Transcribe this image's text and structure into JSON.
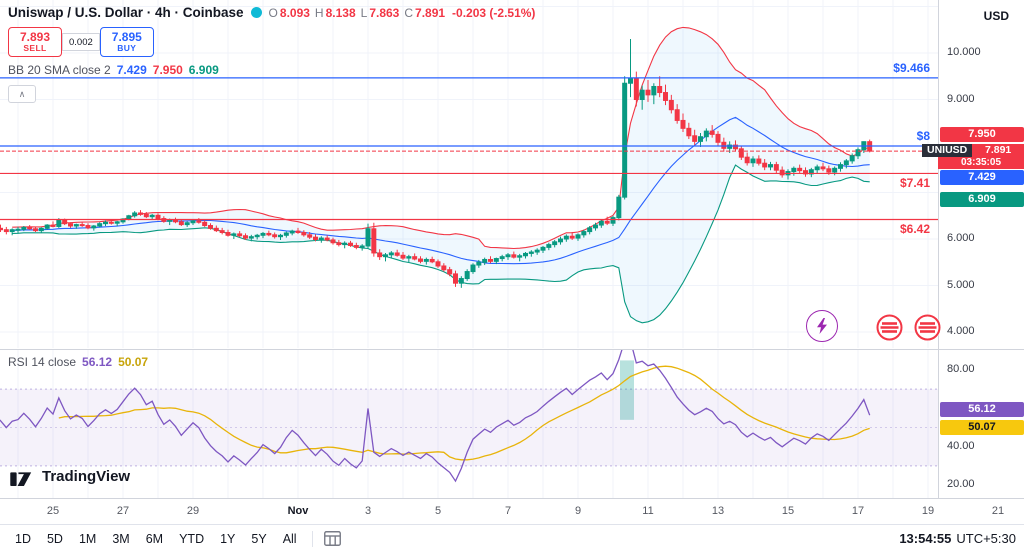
{
  "header": {
    "symbol_title": "Uniswap / U.S. Dollar · 4h · Coinbase",
    "ohlc": {
      "o_label": "O",
      "o": "8.093",
      "h_label": "H",
      "h": "8.138",
      "l_label": "L",
      "l": "7.863",
      "c_label": "C",
      "c": "7.891",
      "change": "-0.203 (-2.51%)"
    },
    "currency_button": "USD"
  },
  "order_panel": {
    "sell_price": "7.893",
    "sell_label": "SELL",
    "spread": "0.002",
    "buy_price": "7.895",
    "buy_label": "BUY"
  },
  "indicators": {
    "bb": {
      "label": "BB 20 SMA close 2",
      "basis": "7.429",
      "upper": "7.950",
      "lower": "6.909"
    },
    "rsi": {
      "label": "RSI 14 close",
      "value": "56.12",
      "ma": "50.07"
    },
    "collapse_glyph": "∧"
  },
  "price_axis": {
    "ticks": [
      {
        "price": 10,
        "label": "10.000"
      },
      {
        "price": 9,
        "label": "9.000"
      },
      {
        "price": 6,
        "label": "6.000"
      },
      {
        "price": 5,
        "label": "5.000"
      },
      {
        "price": 4,
        "label": "4.000"
      }
    ],
    "badges": [
      {
        "text": "7.950",
        "price": 7.95,
        "bg": "#f23645",
        "color": "#ffffff"
      },
      {
        "text": "7.429",
        "price": 7.429,
        "bg": "#2962ff",
        "color": "#ffffff"
      },
      {
        "text": "6.909",
        "price": 6.909,
        "bg": "#089981",
        "color": "#ffffff"
      }
    ],
    "symbol_badge": {
      "symbol": "UNIUSD",
      "price": "7.891",
      "price_value": 7.891,
      "countdown": "03:35:05"
    }
  },
  "rsi_axis": {
    "ticks": [
      {
        "value": 80,
        "label": "80.00"
      },
      {
        "value": 60,
        "label": "60.00"
      },
      {
        "value": 40,
        "label": "40.00"
      },
      {
        "value": 20,
        "label": "20.00"
      }
    ],
    "badges": [
      {
        "text": "56.12",
        "value": 56.12,
        "bg": "#7e57c2",
        "color": "#ffffff",
        "nudge": -7
      },
      {
        "text": "50.07",
        "value": 50.07,
        "bg": "#f7c80e",
        "color": "#131722",
        "nudge": 0
      }
    ]
  },
  "time_axis": {
    "labels": [
      {
        "text": "25",
        "day": 1
      },
      {
        "text": "27",
        "day": 3
      },
      {
        "text": "29",
        "day": 5
      },
      {
        "text": "Nov",
        "day": 8,
        "month": true
      },
      {
        "text": "3",
        "day": 10
      },
      {
        "text": "5",
        "day": 12
      },
      {
        "text": "7",
        "day": 14
      },
      {
        "text": "9",
        "day": 16
      },
      {
        "text": "11",
        "day": 18
      },
      {
        "text": "13",
        "day": 20
      },
      {
        "text": "15",
        "day": 22
      },
      {
        "text": "17",
        "day": 24
      },
      {
        "text": "19",
        "day": 26
      },
      {
        "text": "21",
        "day": 28
      }
    ]
  },
  "toolbar": {
    "ranges": [
      "1D",
      "5D",
      "1M",
      "3M",
      "6M",
      "YTD",
      "1Y",
      "5Y",
      "All"
    ],
    "clock": "13:54:55",
    "timezone": "UTC+5:30"
  },
  "logo": {
    "text": "TradingView"
  },
  "chart_data": {
    "type": "candlestick",
    "symbol": "UNIUSD",
    "title": "Uniswap / U.S. Dollar",
    "interval": "4h",
    "exchange": "Coinbase",
    "last_ohlc": {
      "open": 8.093,
      "high": 8.138,
      "low": 7.863,
      "close": 7.891,
      "change": -0.203,
      "change_pct": -2.51
    },
    "visible_from": 20,
    "candles": [
      [
        6.1,
        6.18,
        6.02,
        6.15
      ],
      [
        6.15,
        6.22,
        6.08,
        6.12
      ],
      [
        6.12,
        6.2,
        6.05,
        6.18
      ],
      [
        6.18,
        6.26,
        6.12,
        6.22
      ],
      [
        6.22,
        6.3,
        6.15,
        6.19
      ],
      [
        6.19,
        6.25,
        6.1,
        6.14
      ],
      [
        6.14,
        6.22,
        6.06,
        6.2
      ],
      [
        6.2,
        6.28,
        6.12,
        6.16
      ],
      [
        6.16,
        6.24,
        6.08,
        6.21
      ],
      [
        6.21,
        6.3,
        6.14,
        6.26
      ],
      [
        6.26,
        6.34,
        6.18,
        6.22
      ],
      [
        6.22,
        6.28,
        6.12,
        6.17
      ],
      [
        6.17,
        6.25,
        6.1,
        6.21
      ],
      [
        6.21,
        6.29,
        6.13,
        6.18
      ],
      [
        6.18,
        6.24,
        6.08,
        6.14
      ],
      [
        6.14,
        6.21,
        6.05,
        6.19
      ],
      [
        6.19,
        6.27,
        6.11,
        6.23
      ],
      [
        6.23,
        6.31,
        6.15,
        6.2
      ],
      [
        6.2,
        6.26,
        6.1,
        6.16
      ],
      [
        6.16,
        6.23,
        6.08,
        6.2
      ],
      [
        6.2,
        6.26,
        6.12,
        6.21
      ],
      [
        6.21,
        6.28,
        6.17,
        6.25
      ],
      [
        6.25,
        6.3,
        6.2,
        6.22
      ],
      [
        6.22,
        6.26,
        6.15,
        6.18
      ],
      [
        6.18,
        6.25,
        6.14,
        6.23
      ],
      [
        6.23,
        6.32,
        6.2,
        6.3
      ],
      [
        6.3,
        6.38,
        6.25,
        6.27
      ],
      [
        6.27,
        6.45,
        6.24,
        6.4
      ],
      [
        6.4,
        6.44,
        6.3,
        6.33
      ],
      [
        6.33,
        6.36,
        6.24,
        6.28
      ],
      [
        6.28,
        6.33,
        6.22,
        6.31
      ],
      [
        6.31,
        6.36,
        6.26,
        6.29
      ],
      [
        6.29,
        6.34,
        6.21,
        6.24
      ],
      [
        6.24,
        6.3,
        6.18,
        6.28
      ],
      [
        6.28,
        6.36,
        6.25,
        6.33
      ],
      [
        6.33,
        6.4,
        6.28,
        6.36
      ],
      [
        6.36,
        6.42,
        6.31,
        6.34
      ],
      [
        6.34,
        6.39,
        6.28,
        6.37
      ],
      [
        6.37,
        6.45,
        6.33,
        6.43
      ],
      [
        6.43,
        6.52,
        6.4,
        6.5
      ],
      [
        6.5,
        6.6,
        6.46,
        6.56
      ],
      [
        6.56,
        6.62,
        6.5,
        6.53
      ],
      [
        6.53,
        6.58,
        6.45,
        6.48
      ],
      [
        6.48,
        6.54,
        6.42,
        6.51
      ],
      [
        6.51,
        6.55,
        6.4,
        6.44
      ],
      [
        6.44,
        6.49,
        6.35,
        6.38
      ],
      [
        6.38,
        6.44,
        6.3,
        6.41
      ],
      [
        6.41,
        6.46,
        6.34,
        6.37
      ],
      [
        6.37,
        6.42,
        6.28,
        6.31
      ],
      [
        6.31,
        6.38,
        6.26,
        6.35
      ],
      [
        6.35,
        6.42,
        6.3,
        6.39
      ],
      [
        6.39,
        6.45,
        6.33,
        6.36
      ],
      [
        6.36,
        6.4,
        6.26,
        6.29
      ],
      [
        6.29,
        6.34,
        6.2,
        6.23
      ],
      [
        6.23,
        6.29,
        6.15,
        6.18
      ],
      [
        6.18,
        6.24,
        6.1,
        6.14
      ],
      [
        6.14,
        6.2,
        6.05,
        6.08
      ],
      [
        6.08,
        6.14,
        6.0,
        6.11
      ],
      [
        6.11,
        6.17,
        6.04,
        6.07
      ],
      [
        6.07,
        6.12,
        5.98,
        6.02
      ],
      [
        6.02,
        6.09,
        5.95,
        6.05
      ],
      [
        6.05,
        6.11,
        5.99,
        6.08
      ],
      [
        6.08,
        6.15,
        6.02,
        6.12
      ],
      [
        6.12,
        6.18,
        6.06,
        6.09
      ],
      [
        6.09,
        6.14,
        6.01,
        6.05
      ],
      [
        6.05,
        6.11,
        5.98,
        6.08
      ],
      [
        6.08,
        6.16,
        6.03,
        6.13
      ],
      [
        6.13,
        6.2,
        6.08,
        6.17
      ],
      [
        6.17,
        6.24,
        6.11,
        6.14
      ],
      [
        6.14,
        6.19,
        6.05,
        6.09
      ],
      [
        6.09,
        6.15,
        6.0,
        6.04
      ],
      [
        6.04,
        6.1,
        5.95,
        5.99
      ],
      [
        5.99,
        6.06,
        5.92,
        6.02
      ],
      [
        6.02,
        6.08,
        5.95,
        5.98
      ],
      [
        5.98,
        6.03,
        5.88,
        5.92
      ],
      [
        5.92,
        5.98,
        5.84,
        5.88
      ],
      [
        5.88,
        5.95,
        5.8,
        5.91
      ],
      [
        5.91,
        5.96,
        5.83,
        5.86
      ],
      [
        5.86,
        5.92,
        5.78,
        5.82
      ],
      [
        5.82,
        5.89,
        5.75,
        5.85
      ],
      [
        5.85,
        6.33,
        5.8,
        6.22
      ],
      [
        6.22,
        6.35,
        5.62,
        5.7
      ],
      [
        5.7,
        5.78,
        5.55,
        5.62
      ],
      [
        5.62,
        5.7,
        5.52,
        5.66
      ],
      [
        5.66,
        5.74,
        5.58,
        5.7
      ],
      [
        5.7,
        5.77,
        5.62,
        5.65
      ],
      [
        5.65,
        5.72,
        5.55,
        5.59
      ],
      [
        5.59,
        5.66,
        5.5,
        5.62
      ],
      [
        5.62,
        5.69,
        5.54,
        5.57
      ],
      [
        5.57,
        5.63,
        5.48,
        5.52
      ],
      [
        5.52,
        5.6,
        5.45,
        5.56
      ],
      [
        5.56,
        5.62,
        5.48,
        5.51
      ],
      [
        5.51,
        5.56,
        5.38,
        5.42
      ],
      [
        5.42,
        5.48,
        5.3,
        5.34
      ],
      [
        5.34,
        5.4,
        5.2,
        5.25
      ],
      [
        5.25,
        5.32,
        4.97,
        5.05
      ],
      [
        5.05,
        5.2,
        4.95,
        5.15
      ],
      [
        5.15,
        5.35,
        5.1,
        5.3
      ],
      [
        5.3,
        5.48,
        5.25,
        5.44
      ],
      [
        5.44,
        5.55,
        5.38,
        5.5
      ],
      [
        5.5,
        5.6,
        5.44,
        5.56
      ],
      [
        5.56,
        5.63,
        5.48,
        5.52
      ],
      [
        5.52,
        5.6,
        5.46,
        5.58
      ],
      [
        5.58,
        5.66,
        5.52,
        5.62
      ],
      [
        5.62,
        5.7,
        5.55,
        5.66
      ],
      [
        5.66,
        5.73,
        5.58,
        5.61
      ],
      [
        5.61,
        5.68,
        5.52,
        5.64
      ],
      [
        5.64,
        5.72,
        5.58,
        5.69
      ],
      [
        5.69,
        5.76,
        5.62,
        5.72
      ],
      [
        5.72,
        5.8,
        5.66,
        5.76
      ],
      [
        5.76,
        5.85,
        5.7,
        5.82
      ],
      [
        5.82,
        5.92,
        5.76,
        5.88
      ],
      [
        5.88,
        5.98,
        5.82,
        5.94
      ],
      [
        5.94,
        6.05,
        5.88,
        6.0
      ],
      [
        6.0,
        6.1,
        5.94,
        6.06
      ],
      [
        6.06,
        6.15,
        5.98,
        6.02
      ],
      [
        6.02,
        6.12,
        5.96,
        6.09
      ],
      [
        6.09,
        6.2,
        6.03,
        6.16
      ],
      [
        6.16,
        6.28,
        6.1,
        6.24
      ],
      [
        6.24,
        6.35,
        6.18,
        6.3
      ],
      [
        6.3,
        6.42,
        6.24,
        6.38
      ],
      [
        6.38,
        6.48,
        6.3,
        6.34
      ],
      [
        6.34,
        6.5,
        6.28,
        6.46
      ],
      [
        6.46,
        6.95,
        6.4,
        6.9
      ],
      [
        6.9,
        9.5,
        6.85,
        9.35
      ],
      [
        9.35,
        10.3,
        9.05,
        9.45
      ],
      [
        9.45,
        9.6,
        8.85,
        9.0
      ],
      [
        9.0,
        9.3,
        8.78,
        9.2
      ],
      [
        9.2,
        9.42,
        8.95,
        9.1
      ],
      [
        9.1,
        9.35,
        8.9,
        9.28
      ],
      [
        9.28,
        9.5,
        9.05,
        9.15
      ],
      [
        9.15,
        9.32,
        8.88,
        8.98
      ],
      [
        8.98,
        9.1,
        8.7,
        8.78
      ],
      [
        8.78,
        8.9,
        8.48,
        8.55
      ],
      [
        8.55,
        8.7,
        8.3,
        8.38
      ],
      [
        8.38,
        8.5,
        8.15,
        8.22
      ],
      [
        8.22,
        8.35,
        8.02,
        8.1
      ],
      [
        8.1,
        8.28,
        7.98,
        8.2
      ],
      [
        8.2,
        8.38,
        8.1,
        8.32
      ],
      [
        8.32,
        8.45,
        8.18,
        8.25
      ],
      [
        8.25,
        8.32,
        8.0,
        8.08
      ],
      [
        8.08,
        8.18,
        7.88,
        7.95
      ],
      [
        7.95,
        8.1,
        7.85,
        8.02
      ],
      [
        8.02,
        8.12,
        7.88,
        7.94
      ],
      [
        7.94,
        8.0,
        7.7,
        7.76
      ],
      [
        7.76,
        7.86,
        7.58,
        7.64
      ],
      [
        7.64,
        7.78,
        7.55,
        7.72
      ],
      [
        7.72,
        7.8,
        7.58,
        7.63
      ],
      [
        7.63,
        7.72,
        7.48,
        7.55
      ],
      [
        7.55,
        7.66,
        7.48,
        7.6
      ],
      [
        7.6,
        7.66,
        7.42,
        7.48
      ],
      [
        7.48,
        7.56,
        7.32,
        7.38
      ],
      [
        7.38,
        7.5,
        7.28,
        7.45
      ],
      [
        7.45,
        7.56,
        7.36,
        7.52
      ],
      [
        7.52,
        7.6,
        7.42,
        7.47
      ],
      [
        7.47,
        7.54,
        7.34,
        7.4
      ],
      [
        7.4,
        7.53,
        7.33,
        7.49
      ],
      [
        7.49,
        7.6,
        7.42,
        7.55
      ],
      [
        7.55,
        7.64,
        7.46,
        7.51
      ],
      [
        7.51,
        7.58,
        7.38,
        7.44
      ],
      [
        7.44,
        7.56,
        7.37,
        7.52
      ],
      [
        7.52,
        7.65,
        7.45,
        7.6
      ],
      [
        7.6,
        7.72,
        7.52,
        7.68
      ],
      [
        7.68,
        7.84,
        7.62,
        7.79
      ],
      [
        7.79,
        7.97,
        7.72,
        7.92
      ],
      [
        7.92,
        8.1,
        7.85,
        8.093
      ],
      [
        8.093,
        8.138,
        7.863,
        7.891
      ]
    ],
    "horizontal_lines": [
      {
        "price": 9.466,
        "label": "$9.466",
        "color": "#2962ff",
        "label_above": true
      },
      {
        "price": 8.0,
        "label": "$8",
        "color": "#2962ff",
        "label_above": true
      },
      {
        "price": 7.41,
        "label": "$7.41",
        "color": "#f23645",
        "label_above": false
      },
      {
        "price": 6.42,
        "label": "$6.42",
        "color": "#f23645",
        "label_above": false
      }
    ],
    "last_price_line": {
      "price": 7.891,
      "color": "#f23645"
    },
    "bollinger": {
      "period": 20,
      "stdev": 2,
      "source": "close",
      "last_basis": 7.429,
      "last_upper": 7.95,
      "last_lower": 6.909,
      "basis_color": "#2962ff",
      "upper_color": "#f23645",
      "lower_color": "#089981",
      "fill": "rgba(33,150,243,0.07)"
    },
    "rsi": {
      "period": 14,
      "source": "close",
      "last_value": 56.12,
      "ma_last": 50.07,
      "color": "#7e57c2",
      "ma_color": "#e8b40a",
      "band": [
        30,
        70
      ],
      "band_fill": "rgba(126,87,194,0.08)",
      "highlight_day": 17.4,
      "highlight_fill": "rgba(0,150,136,0.28)",
      "ylim": [
        20,
        80
      ]
    },
    "colors": {
      "up": "#089981",
      "down": "#f23645",
      "grid": "#f0f3fa"
    }
  }
}
